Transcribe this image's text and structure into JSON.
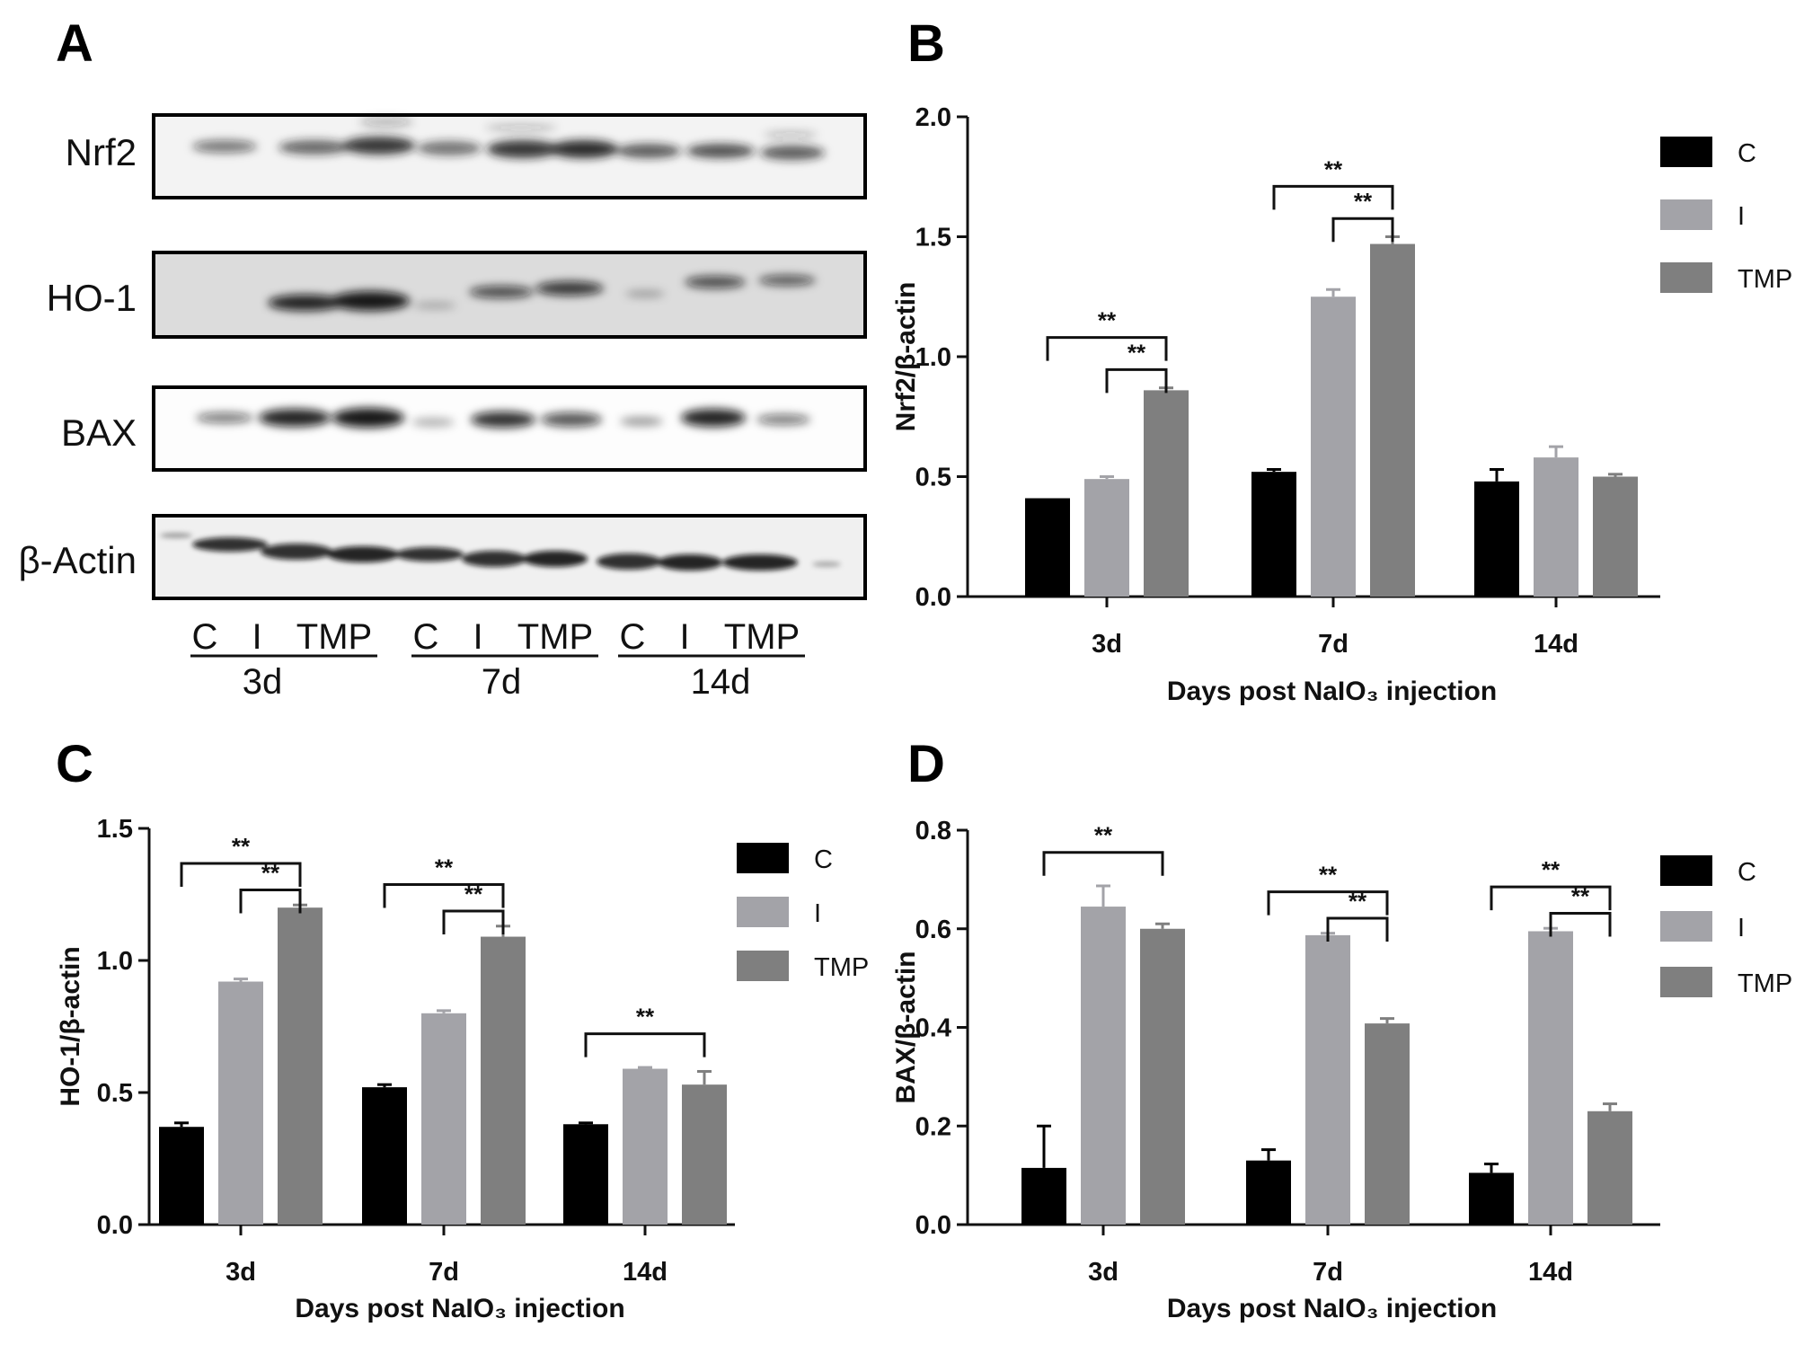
{
  "panel_letters": [
    "A",
    "B",
    "C",
    "D"
  ],
  "western_blot": {
    "rows": [
      "Nrf2",
      "HO-1",
      "BAX",
      "β-Actin"
    ],
    "lane_groups": [
      {
        "lanes": [
          "C",
          "I",
          "TMP"
        ],
        "day": "3d"
      },
      {
        "lanes": [
          "C",
          "I",
          "TMP"
        ],
        "day": "7d"
      },
      {
        "lanes": [
          "C",
          "I",
          "TMP"
        ],
        "day": "14d"
      }
    ]
  },
  "colors": {
    "C": "#000000",
    "I": "#a3a3a8",
    "TMP": "#7f7f7f"
  },
  "chart_data": [
    {
      "panel": "B",
      "type": "bar",
      "categories": [
        "3d",
        "7d",
        "14d"
      ],
      "xlabel": "Days post NaIO₃ injection",
      "ylabel": "Nrf2/β-actin",
      "ylim": [
        0,
        2.0
      ],
      "yticks": [
        "0.0",
        "0.5",
        "1.0",
        "1.5",
        "2.0"
      ],
      "legend": "top-right",
      "series": [
        {
          "name": "C",
          "values": [
            0.41,
            0.52,
            0.48
          ],
          "errors": [
            0.0,
            0.01,
            0.05
          ]
        },
        {
          "name": "I",
          "values": [
            0.49,
            1.25,
            0.58
          ],
          "errors": [
            0.01,
            0.03,
            0.045
          ]
        },
        {
          "name": "TMP",
          "values": [
            0.86,
            1.47,
            0.5
          ],
          "errors": [
            0.01,
            0.03,
            0.01
          ]
        }
      ],
      "significance": [
        {
          "category": 0,
          "from": "C",
          "to": "TMP",
          "label": "**"
        },
        {
          "category": 0,
          "from": "I",
          "to": "TMP",
          "label": "**"
        },
        {
          "category": 1,
          "from": "C",
          "to": "TMP",
          "label": "**"
        },
        {
          "category": 1,
          "from": "I",
          "to": "TMP",
          "label": "**"
        }
      ]
    },
    {
      "panel": "C",
      "type": "bar",
      "categories": [
        "3d",
        "7d",
        "14d"
      ],
      "xlabel": "Days post NaIO₃ injection",
      "ylabel": "HO-1/β-actin",
      "ylim": [
        0,
        1.5
      ],
      "yticks": [
        "0.0",
        "0.5",
        "1.0",
        "1.5"
      ],
      "legend": "top-right",
      "series": [
        {
          "name": "C",
          "values": [
            0.37,
            0.52,
            0.38
          ],
          "errors": [
            0.015,
            0.01,
            0.005
          ]
        },
        {
          "name": "I",
          "values": [
            0.92,
            0.8,
            0.59
          ],
          "errors": [
            0.01,
            0.01,
            0.005
          ]
        },
        {
          "name": "TMP",
          "values": [
            1.2,
            1.09,
            0.53
          ],
          "errors": [
            0.01,
            0.04,
            0.05
          ]
        }
      ],
      "significance": [
        {
          "category": 0,
          "from": "C",
          "to": "TMP",
          "label": "**"
        },
        {
          "category": 0,
          "from": "I",
          "to": "TMP",
          "label": "**"
        },
        {
          "category": 1,
          "from": "C",
          "to": "TMP",
          "label": "**"
        },
        {
          "category": 1,
          "from": "I",
          "to": "TMP",
          "label": "**"
        },
        {
          "category": 2,
          "from": "C",
          "to": "TMP",
          "label": "**"
        }
      ]
    },
    {
      "panel": "D",
      "type": "bar",
      "categories": [
        "3d",
        "7d",
        "14d"
      ],
      "xlabel": "Days post NaIO₃ injection",
      "ylabel": "BAX/β-actin",
      "ylim": [
        0,
        0.8
      ],
      "yticks": [
        "0.0",
        "0.2",
        "0.4",
        "0.6",
        "0.8"
      ],
      "legend": "top-right",
      "series": [
        {
          "name": "C",
          "values": [
            0.115,
            0.13,
            0.105
          ],
          "errors": [
            0.085,
            0.022,
            0.018
          ]
        },
        {
          "name": "I",
          "values": [
            0.645,
            0.587,
            0.595
          ],
          "errors": [
            0.042,
            0.004,
            0.006
          ]
        },
        {
          "name": "TMP",
          "values": [
            0.6,
            0.408,
            0.23
          ],
          "errors": [
            0.01,
            0.01,
            0.015
          ]
        }
      ],
      "significance": [
        {
          "category": 0,
          "from": "C",
          "to": "TMP",
          "label": "**"
        },
        {
          "category": 1,
          "from": "C",
          "to": "TMP",
          "label": "**"
        },
        {
          "category": 1,
          "from": "I",
          "to": "TMP",
          "label": "**"
        },
        {
          "category": 2,
          "from": "C",
          "to": "TMP",
          "label": "**"
        },
        {
          "category": 2,
          "from": "I",
          "to": "TMP",
          "label": "**"
        }
      ]
    }
  ]
}
